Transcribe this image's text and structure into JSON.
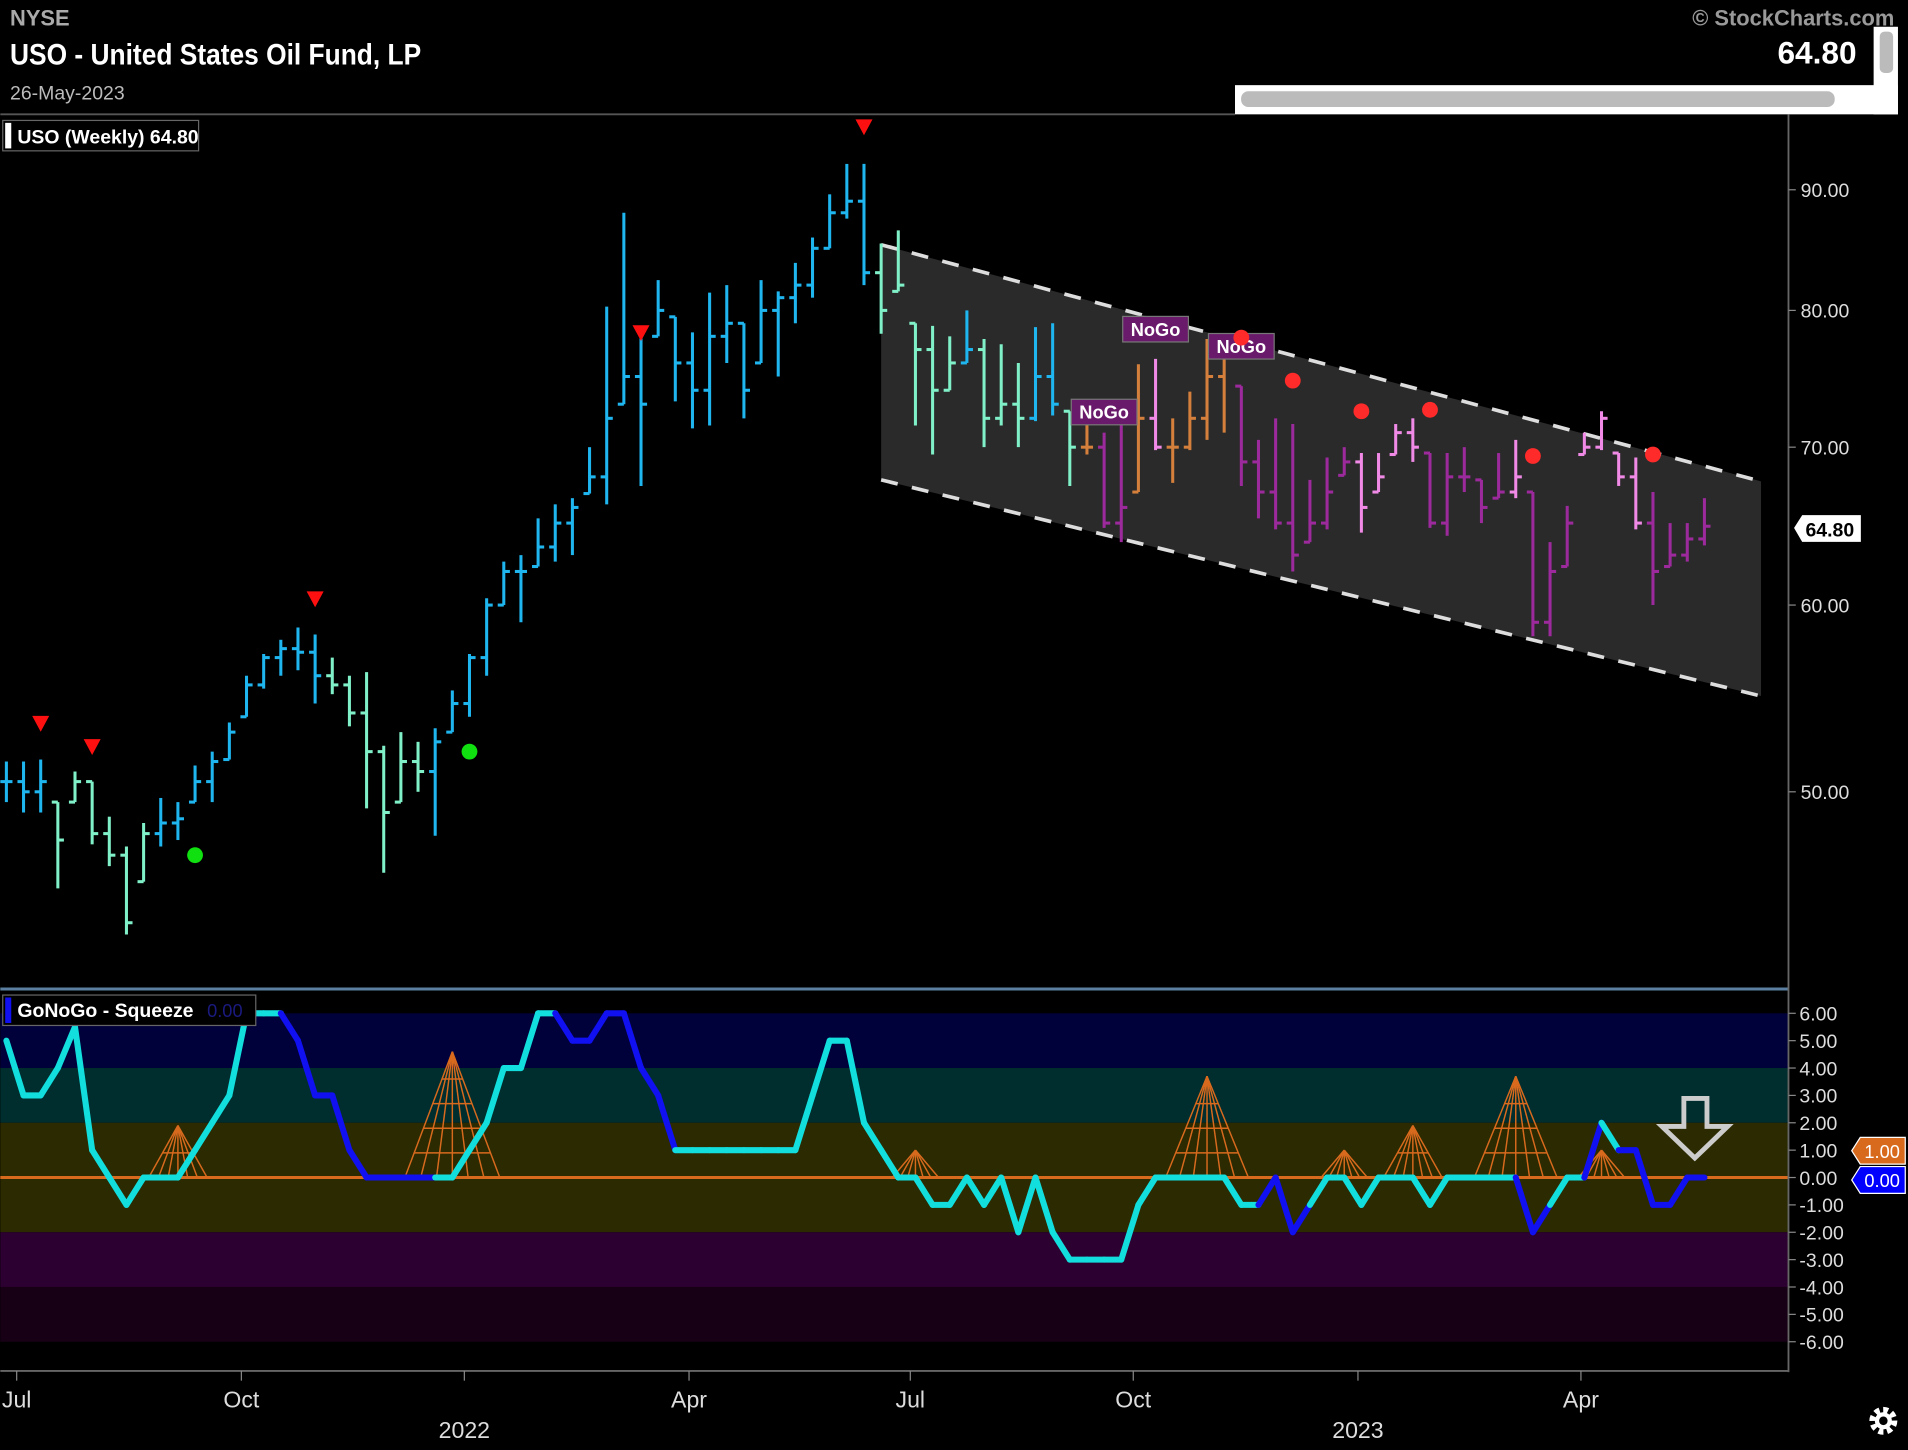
{
  "header": {
    "exchange": "NYSE",
    "title": "USO - United States Oil Fund, LP",
    "date": "26-May-2023",
    "copyright": "© StockCharts.com",
    "last_price": "64.80"
  },
  "price_panel": {
    "legend": "USO (Weekly) 64.80",
    "price_tag": "64.80",
    "nogo_label": "NoGo"
  },
  "indicator_panel": {
    "legend": "GoNoGo - Squeeze",
    "legend_value": "0.00",
    "tag_squeeze": "1.00",
    "tag_osc": "0.00"
  },
  "colors": {
    "b": "#1fb6f0",
    "m": "#80f0c8",
    "o": "#d4803c",
    "p": "#9c2a9c",
    "k": "#f08ae6",
    "osc_c": "#12dede",
    "osc_b": "#1010f0",
    "squeeze": "#d86a1e"
  },
  "chart_data": {
    "type": "ohlc",
    "title": "USO - United States Oil Fund, LP (Weekly)",
    "scale": "log",
    "y_ticks": [
      "50.00",
      "60.00",
      "70.00",
      "80.00",
      "90.00"
    ],
    "y_tick_values": [
      50,
      60,
      70,
      80,
      90
    ],
    "x_labels": [
      {
        "label": "Jul",
        "week": 0.6,
        "row": 1
      },
      {
        "label": "Oct",
        "week": 13.7,
        "row": 1
      },
      {
        "label": "2022",
        "week": 26.7,
        "row": 2
      },
      {
        "label": "Apr",
        "week": 39.8,
        "row": 1
      },
      {
        "label": "Jul",
        "week": 52.7,
        "row": 1
      },
      {
        "label": "Oct",
        "week": 65.7,
        "row": 1
      },
      {
        "label": "2023",
        "week": 78.8,
        "row": 2
      },
      {
        "label": "Apr",
        "week": 91.8,
        "row": 1
      }
    ],
    "bars_hlc": [
      [
        51.5,
        49.5,
        50.5
      ],
      [
        51.5,
        49,
        50
      ],
      [
        51.6,
        49,
        50.5
      ],
      [
        49.5,
        45.5,
        47.7
      ],
      [
        51,
        49.5,
        50.5
      ],
      [
        50.5,
        47.5,
        48
      ],
      [
        48.8,
        46.5,
        47
      ],
      [
        47.4,
        43.5,
        44
      ],
      [
        48.5,
        45.8,
        48
      ],
      [
        49.7,
        47.4,
        48.5
      ],
      [
        49.5,
        47.7,
        48.7
      ],
      [
        51.3,
        49.5,
        50.5
      ],
      [
        52,
        49.5,
        51.5
      ],
      [
        53.5,
        51.6,
        53
      ],
      [
        56,
        53.8,
        55.5
      ],
      [
        57.2,
        55.3,
        57
      ],
      [
        58,
        56,
        57.5
      ],
      [
        58.7,
        56.3,
        57.3
      ],
      [
        58.3,
        54.5,
        56
      ],
      [
        57,
        55,
        55.5
      ],
      [
        56,
        53.3,
        54
      ],
      [
        56.2,
        49.2,
        52
      ],
      [
        52.3,
        46.2,
        49
      ],
      [
        53,
        49.5,
        51.5
      ],
      [
        52.5,
        50,
        51
      ],
      [
        53.2,
        47.9,
        52.5
      ],
      [
        55.2,
        53,
        54.5
      ],
      [
        57.2,
        53.8,
        57
      ],
      [
        60.4,
        56,
        60
      ],
      [
        62.6,
        60,
        62
      ],
      [
        63,
        59,
        62
      ],
      [
        65.3,
        62.3,
        63.5
      ],
      [
        66.2,
        62.6,
        65
      ],
      [
        66.6,
        63,
        66
      ],
      [
        70,
        66.9,
        68
      ],
      [
        80.3,
        66.2,
        72
      ],
      [
        88,
        73,
        75
      ],
      [
        78.3,
        67.4,
        73
      ],
      [
        82.4,
        78,
        80
      ],
      [
        79.5,
        73.2,
        76
      ],
      [
        78.3,
        71.3,
        74
      ],
      [
        81.4,
        71.5,
        78
      ],
      [
        82,
        76,
        79
      ],
      [
        79,
        72,
        74
      ],
      [
        82.4,
        76,
        80
      ],
      [
        81.5,
        75,
        81
      ],
      [
        83.8,
        79,
        82
      ],
      [
        85.9,
        81,
        85
      ],
      [
        89.6,
        85,
        88
      ],
      [
        92.3,
        87.5,
        89
      ],
      [
        92.3,
        82,
        83
      ],
      [
        85.4,
        78.2,
        80
      ],
      [
        86.5,
        81.5,
        82
      ],
      [
        79,
        71.5,
        77
      ],
      [
        78.8,
        69.5,
        74
      ],
      [
        78,
        74,
        76
      ],
      [
        80,
        76,
        77
      ],
      [
        77.8,
        70,
        72
      ],
      [
        77.4,
        71.5,
        73
      ],
      [
        76,
        70,
        72
      ],
      [
        78.7,
        71.8,
        75
      ],
      [
        79,
        72.2,
        73
      ],
      [
        72.5,
        67.4,
        70
      ],
      [
        73.3,
        69.5,
        70
      ],
      [
        71,
        64.7,
        65
      ],
      [
        73,
        63.8,
        66
      ],
      [
        75.9,
        67,
        72
      ],
      [
        76.3,
        69.8,
        70
      ],
      [
        72,
        67.6,
        70
      ],
      [
        73.9,
        69.8,
        72
      ],
      [
        77.8,
        70.5,
        75
      ],
      [
        77.8,
        71,
        77
      ],
      [
        74.3,
        67.4,
        69
      ],
      [
        70.5,
        65.3,
        67
      ],
      [
        72,
        64.6,
        65
      ],
      [
        71.6,
        62,
        63
      ],
      [
        67.8,
        63.8,
        65
      ],
      [
        69.3,
        64.6,
        67
      ],
      [
        70,
        68.1,
        69
      ],
      [
        69.6,
        64.4,
        66
      ],
      [
        69.6,
        67,
        68
      ],
      [
        71.6,
        69.5,
        71
      ],
      [
        72,
        69,
        70
      ],
      [
        69.6,
        64.7,
        65
      ],
      [
        69.6,
        64.2,
        68
      ],
      [
        70,
        67,
        68
      ],
      [
        67.8,
        65,
        66
      ],
      [
        69.6,
        66.6,
        67
      ],
      [
        70.5,
        66.6,
        68
      ],
      [
        67,
        58.2,
        59
      ],
      [
        63.8,
        58.2,
        62
      ],
      [
        66.1,
        62.3,
        65
      ],
      [
        71,
        69.5,
        70
      ],
      [
        72.5,
        69.8,
        72
      ],
      [
        69.6,
        67.4,
        68
      ],
      [
        69.3,
        64.6,
        65
      ],
      [
        67,
        60,
        62
      ],
      [
        65,
        62.3,
        63
      ],
      [
        65,
        62.6,
        64
      ],
      [
        66.6,
        63.6,
        64.8
      ]
    ],
    "bar_colors": "bbbmmmmmmbbbbbbbbbbmmmmmmbbbbbbbbbbbbbbbbbbbbbbbbbbmmmmmbmmmbbmoppokooooppppppp kkkkpppppkpppkkkkpppp",
    "signals": {
      "down_triangles": [
        [
          2,
          53.4
        ],
        [
          5,
          52.2
        ],
        [
          18,
          60.3
        ],
        [
          37,
          78.2
        ],
        [
          50,
          95.6
        ]
      ],
      "green_dots": [
        [
          11,
          47.0
        ],
        [
          27,
          52.0
        ]
      ],
      "red_dots": [
        [
          72,
          77.9
        ],
        [
          75,
          74.7
        ],
        [
          79,
          72.5
        ],
        [
          83,
          72.6
        ],
        [
          89,
          69.4
        ],
        [
          96,
          69.5
        ]
      ],
      "nogo_labels": [
        [
          67,
          78.5
        ],
        [
          64,
          72.4
        ],
        [
          72,
          77.2
        ]
      ]
    },
    "channel": {
      "upper": [
        [
          51,
          85.3
        ],
        [
          102.3,
          67.7
        ]
      ],
      "lower": [
        [
          51,
          67.8
        ],
        [
          102.3,
          54.9
        ]
      ]
    },
    "oscillator": {
      "y_ticks": [
        "6.00",
        "5.00",
        "4.00",
        "3.00",
        "2.00",
        "1.00",
        "0.00",
        "-1.00",
        "-2.00",
        "-3.00",
        "-4.00",
        "-5.00",
        "-6.00"
      ],
      "range": [
        -6,
        6
      ],
      "values": [
        5,
        3,
        3,
        4,
        5.5,
        1,
        0,
        -1,
        0,
        0,
        0,
        1,
        2,
        3,
        6,
        6,
        6,
        5,
        3,
        3,
        1,
        0,
        0,
        0,
        0,
        0,
        0,
        1,
        2,
        4,
        4,
        6,
        6,
        5,
        5,
        6,
        6,
        4,
        3,
        1,
        1,
        1,
        1,
        1,
        1,
        1,
        1,
        3,
        5,
        5,
        2,
        1,
        0,
        0,
        -1,
        -1,
        0,
        -1,
        0,
        -2,
        0,
        -2,
        -3,
        -3,
        -3,
        -3,
        -1,
        0,
        0,
        0,
        0,
        0,
        -1,
        -1,
        0,
        -2,
        -1,
        0,
        0,
        -1,
        0,
        0,
        0,
        -1,
        0,
        0,
        0,
        0,
        0,
        -2,
        -1,
        0,
        0,
        2,
        1,
        1,
        -1,
        -1,
        0,
        0
      ],
      "colors": "bccccccccccccccccbbbbbbbbbcccccccbbbbbbbccccccccccccccccccccccccccccccccccbbbccccccccccccbbccbcbbbbb",
      "squeeze": [
        [
          10,
          2
        ],
        [
          26,
          5
        ],
        [
          53,
          1
        ],
        [
          70,
          4
        ],
        [
          78,
          1
        ],
        [
          82,
          2
        ],
        [
          88,
          4
        ],
        [
          93,
          1
        ]
      ]
    }
  }
}
